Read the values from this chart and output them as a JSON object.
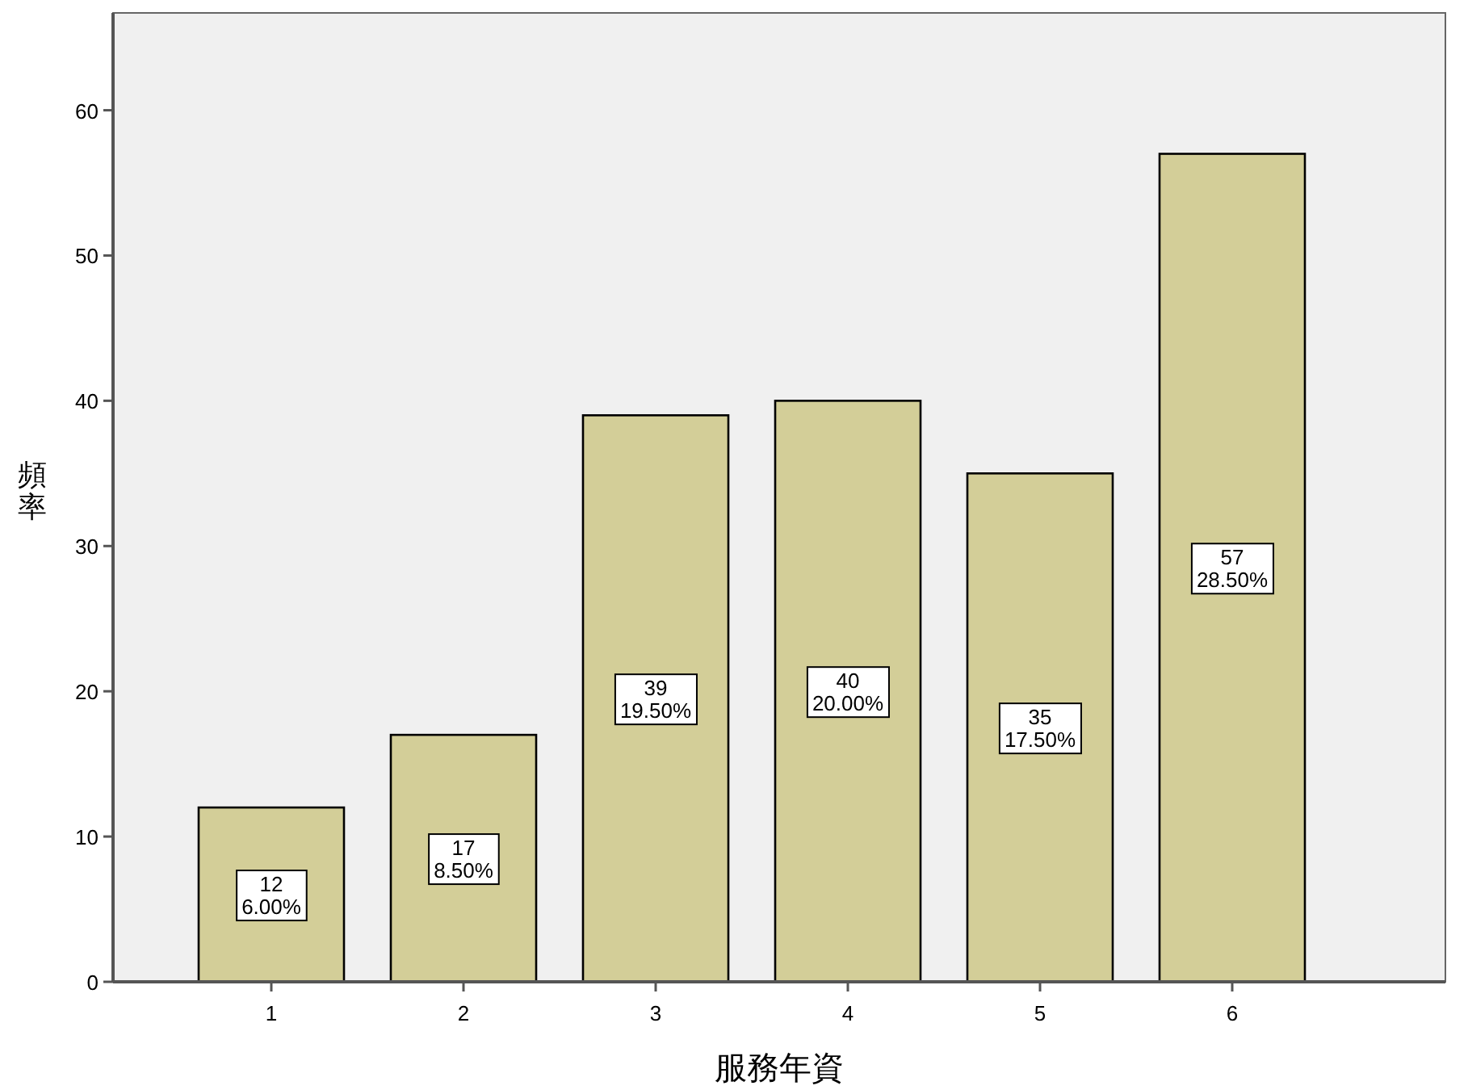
{
  "chart_data": {
    "type": "bar",
    "xlabel": "服務年資",
    "ylabel": "頻率",
    "categories": [
      "1",
      "2",
      "3",
      "4",
      "5",
      "6"
    ],
    "values": [
      12,
      17,
      39,
      40,
      35,
      57
    ],
    "color": "#d3ce98",
    "value_labels": [
      "12\n6.00%",
      "17\n8.50%",
      "39\n19.50%",
      "40\n20.00%",
      "35\n17.50%",
      "57\n28.50%"
    ],
    "ylim": [
      0,
      66.7
    ],
    "yticks": [
      0,
      10,
      20,
      30,
      40,
      50,
      60
    ],
    "grid": false
  }
}
